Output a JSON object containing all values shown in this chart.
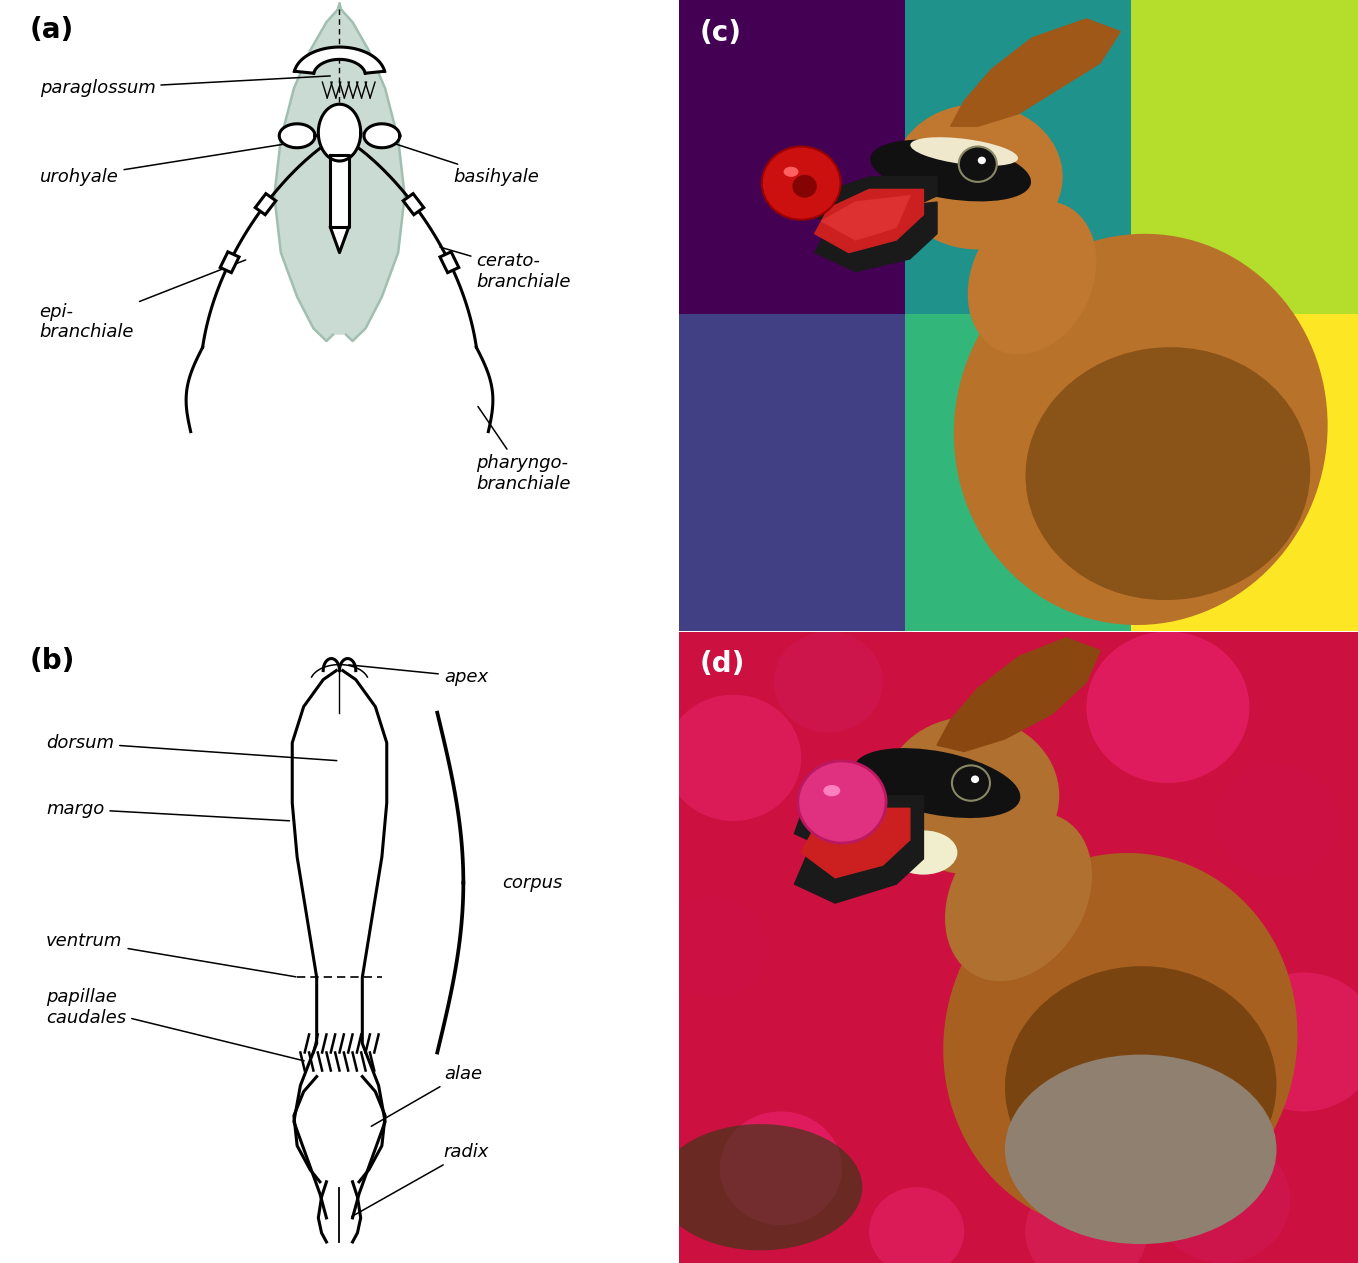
{
  "panel_labels": [
    "(a)",
    "(b)",
    "(c)",
    "(d)"
  ],
  "panel_label_fontsize": 20,
  "annotation_fontsize": 13,
  "bg_color": "#ffffff",
  "diagram_color": "#000000",
  "ghost_color": "#a0bfb0",
  "line_width": 2.2,
  "photo_c_bg": "#5599cc",
  "photo_d_bg": "#cc1044"
}
